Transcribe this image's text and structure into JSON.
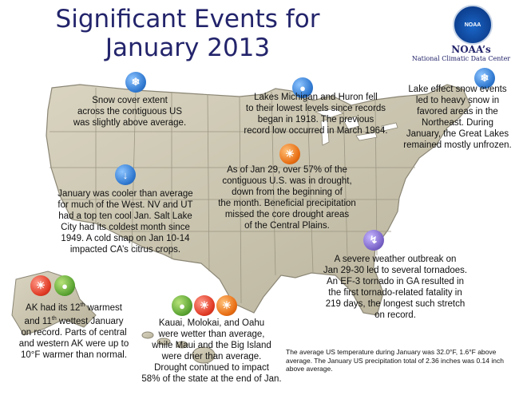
{
  "title": {
    "line1": "Significant Events for",
    "line2": "January 2013"
  },
  "org": {
    "logo_text": "NOAA",
    "short": "NOAA’s",
    "full": "National Climatic Data Center"
  },
  "notes": {
    "snow": [
      "Snow cover extent",
      "across the contiguous US",
      "was slightly above average."
    ],
    "lakes": [
      "Lakes Michigan and Huron fell",
      "to their lowest levels since records",
      "began in 1918. The previous",
      "record low occurred in March 1964."
    ],
    "lake_effect": [
      "Lake effect snow events",
      "led to heavy snow in",
      "favored areas in the",
      "Northeast. During",
      "January, the Great Lakes",
      "remained mostly unfrozen."
    ],
    "drought": [
      "As of Jan 29, over 57% of the",
      "contiguous U.S. was in drought,",
      "down from the beginning of",
      "the month. Beneficial precipitation",
      "missed the core drought areas",
      "of the Central Plains."
    ],
    "west": [
      "January was cooler than average",
      "for much of the West. NV and UT",
      "had a top ten cool Jan. Salt Lake",
      "City had its coldest month since",
      "1949. A cold snap on Jan 10-14",
      "impacted CA’s citrus crops."
    ],
    "severe": [
      "A severe weather outbreak on",
      "Jan 29-30 led to several tornadoes.",
      "An EF-3 tornado in GA resulted in",
      "the first tornado-related fatality in",
      "219 days, the longest such stretch",
      "on record."
    ],
    "ak": {
      "line1_a": "AK had its 12",
      "sup1": "th",
      "line1_b": " warmest",
      "line2_a": "and 11",
      "sup2": "th",
      "line2_b": " wettest January",
      "line3": "on record. Parts of central",
      "line4": "and western AK were up to",
      "line5": "10°F warmer than normal."
    },
    "hawaii": [
      "Kauai, Molokai, and Oahu",
      "were wetter than average,",
      "while Maui and the Big Island",
      "were drier than average.",
      "Drought continued to impact",
      "58% of the state at the end of Jan."
    ],
    "summary": "The average US temperature during January was 32.0°F, 1.6°F above average. The January US precipitation total of 2.36 inches was 0.14 inch above average."
  },
  "icons": {
    "snowflake": "❄",
    "thermo_cold": "↓",
    "sun": "☀",
    "drop": "●",
    "tornado": "↯"
  },
  "colors": {
    "title": "#23246b",
    "map_land": "#c8c3ae",
    "map_border": "#8b8675"
  }
}
